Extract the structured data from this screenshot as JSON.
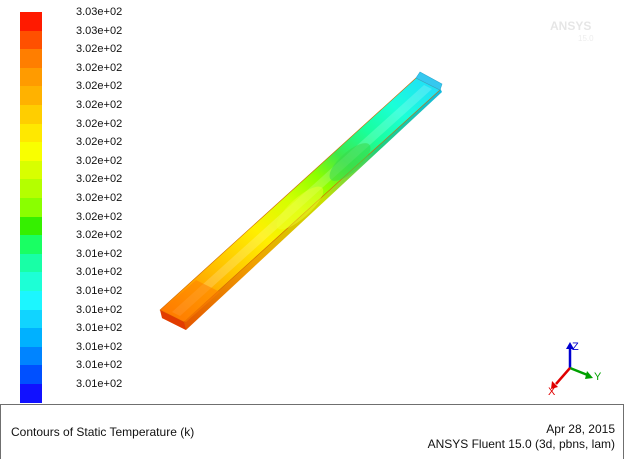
{
  "colorbar": {
    "colors": [
      "#ff1a00",
      "#ff5000",
      "#ff7e00",
      "#ff9b00",
      "#ffb200",
      "#ffce00",
      "#ffe800",
      "#f9ff00",
      "#d8ff00",
      "#b4ff00",
      "#8aff00",
      "#35f000",
      "#19ff63",
      "#18ffa6",
      "#1dffd6",
      "#1cf6ff",
      "#11d4ff",
      "#00b1ff",
      "#0084ff",
      "#0050ff",
      "#1111ff"
    ],
    "labels": [
      "3.03e+02",
      "3.03e+02",
      "3.02e+02",
      "3.02e+02",
      "3.02e+02",
      "3.02e+02",
      "3.02e+02",
      "3.02e+02",
      "3.02e+02",
      "3.02e+02",
      "3.02e+02",
      "3.02e+02",
      "3.02e+02",
      "3.01e+02",
      "3.01e+02",
      "3.01e+02",
      "3.01e+02",
      "3.01e+02",
      "3.01e+02",
      "3.01e+02",
      "3.01e+02"
    ]
  },
  "axes": {
    "x_label": "X",
    "y_label": "Y",
    "z_label": "Z",
    "x_color": "#e00000",
    "y_color": "#00a000",
    "z_color": "#0000d0"
  },
  "watermark": "ANSYS",
  "footer": {
    "title": "Contours of Static Temperature (k)",
    "date": "Apr 28, 2015",
    "solver": "ANSYS Fluent 15.0 (3d, pbns, lam)"
  }
}
